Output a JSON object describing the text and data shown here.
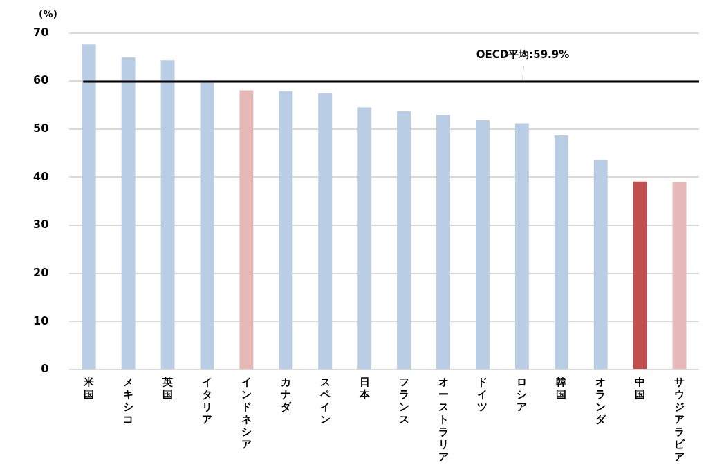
{
  "chart_data": {
    "type": "bar",
    "ylabel": "(%)",
    "categories": [
      "米国",
      "メキシコ",
      "英国",
      "イタリア",
      "インドネシア",
      "カナダ",
      "スペイン",
      "日本",
      "フランス",
      "オーストラリア",
      "ドイツ",
      "ロシア",
      "韓国",
      "オランダ",
      "中国",
      "サウジアラビア"
    ],
    "values": [
      67.6,
      64.9,
      64.3,
      59.7,
      58.1,
      57.9,
      57.5,
      54.5,
      53.7,
      53.0,
      51.9,
      51.2,
      48.7,
      43.6,
      39.1,
      39.0
    ],
    "colors": [
      "#b9cde5",
      "#b9cde5",
      "#b9cde5",
      "#b9cde5",
      "#e6b9b8",
      "#b9cde5",
      "#b9cde5",
      "#b9cde5",
      "#b9cde5",
      "#b9cde5",
      "#b9cde5",
      "#b9cde5",
      "#b9cde5",
      "#b9cde5",
      "#c0504d",
      "#e6b9b8"
    ],
    "ylim": [
      0,
      70
    ],
    "yticks": [
      0,
      10,
      20,
      30,
      40,
      50,
      60,
      70
    ],
    "grid": "y",
    "legend": false,
    "ref_lines": [
      {
        "axis": "y",
        "value": 59.9,
        "label": "OECD平均:59.9%",
        "color": "#000000"
      }
    ]
  }
}
